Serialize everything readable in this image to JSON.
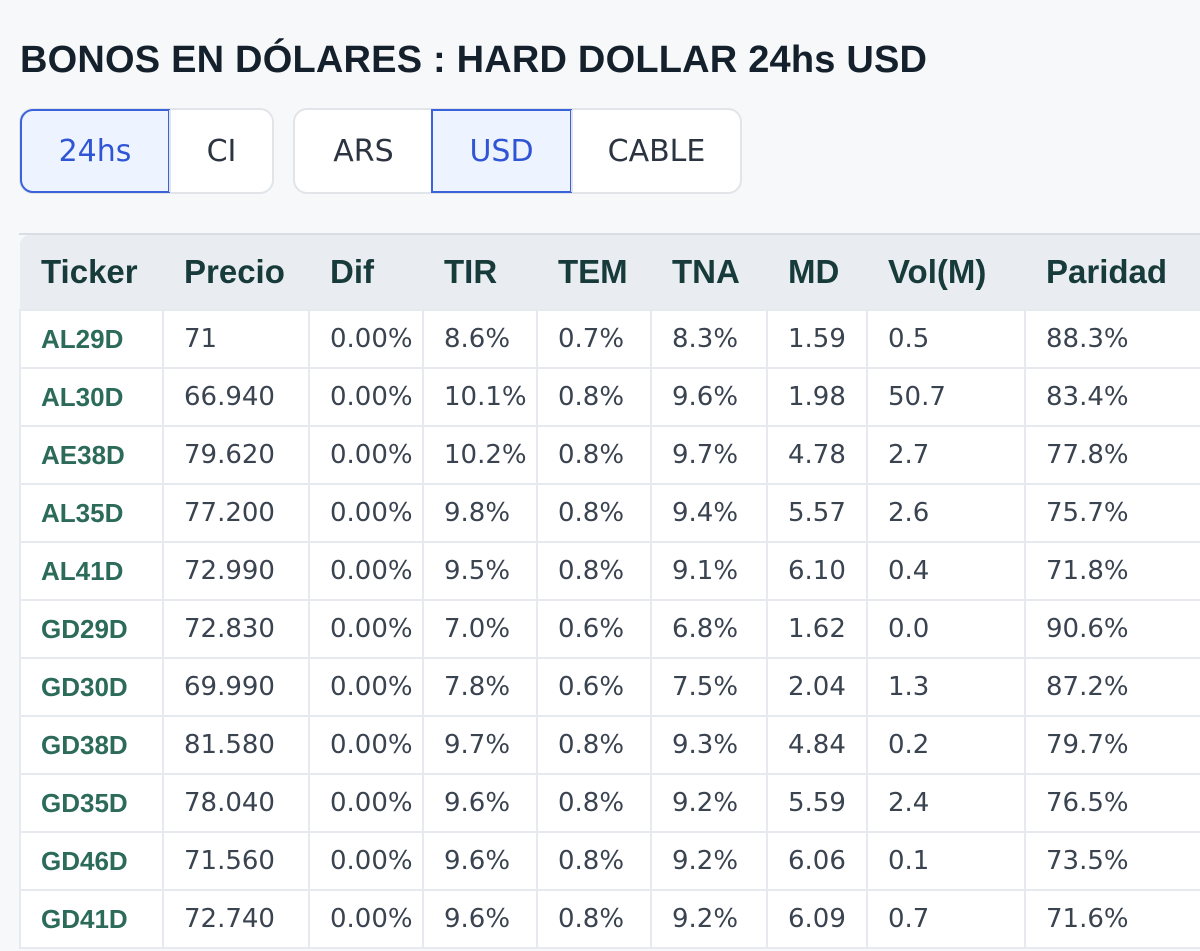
{
  "page": {
    "title": "BONOS EN DÓLARES : HARD DOLLAR 24hs USD"
  },
  "filters": {
    "market": {
      "options": [
        "24hs",
        "CI"
      ],
      "selected": "24hs"
    },
    "currency": {
      "options": [
        "ARS",
        "USD",
        "CABLE"
      ],
      "selected": "USD"
    }
  },
  "table": {
    "columns": [
      "Ticker",
      "Precio",
      "Dif",
      "TIR",
      "TEM",
      "TNA",
      "MD",
      "Vol(M)",
      "Paridad"
    ],
    "rows": [
      [
        "AL29D",
        "71",
        "0.00%",
        "8.6%",
        "0.7%",
        "8.3%",
        "1.59",
        "0.5",
        "88.3%"
      ],
      [
        "AL30D",
        "66.940",
        "0.00%",
        "10.1%",
        "0.8%",
        "9.6%",
        "1.98",
        "50.7",
        "83.4%"
      ],
      [
        "AE38D",
        "79.620",
        "0.00%",
        "10.2%",
        "0.8%",
        "9.7%",
        "4.78",
        "2.7",
        "77.8%"
      ],
      [
        "AL35D",
        "77.200",
        "0.00%",
        "9.8%",
        "0.8%",
        "9.4%",
        "5.57",
        "2.6",
        "75.7%"
      ],
      [
        "AL41D",
        "72.990",
        "0.00%",
        "9.5%",
        "0.8%",
        "9.1%",
        "6.10",
        "0.4",
        "71.8%"
      ],
      [
        "GD29D",
        "72.830",
        "0.00%",
        "7.0%",
        "0.6%",
        "6.8%",
        "1.62",
        "0.0",
        "90.6%"
      ],
      [
        "GD30D",
        "69.990",
        "0.00%",
        "7.8%",
        "0.6%",
        "7.5%",
        "2.04",
        "1.3",
        "87.2%"
      ],
      [
        "GD38D",
        "81.580",
        "0.00%",
        "9.7%",
        "0.8%",
        "9.3%",
        "4.84",
        "0.2",
        "79.7%"
      ],
      [
        "GD35D",
        "78.040",
        "0.00%",
        "9.6%",
        "0.8%",
        "9.2%",
        "5.59",
        "2.4",
        "76.5%"
      ],
      [
        "GD46D",
        "71.560",
        "0.00%",
        "9.6%",
        "0.8%",
        "9.2%",
        "6.06",
        "0.1",
        "73.5%"
      ],
      [
        "GD41D",
        "72.740",
        "0.00%",
        "9.6%",
        "0.8%",
        "9.2%",
        "6.09",
        "0.7",
        "71.6%"
      ]
    ]
  },
  "colors": {
    "accent": "#2f55d4",
    "ticker": "#2c6b5a",
    "header_bg": "#e9ecf0",
    "page_bg": "#f6f8fa"
  }
}
